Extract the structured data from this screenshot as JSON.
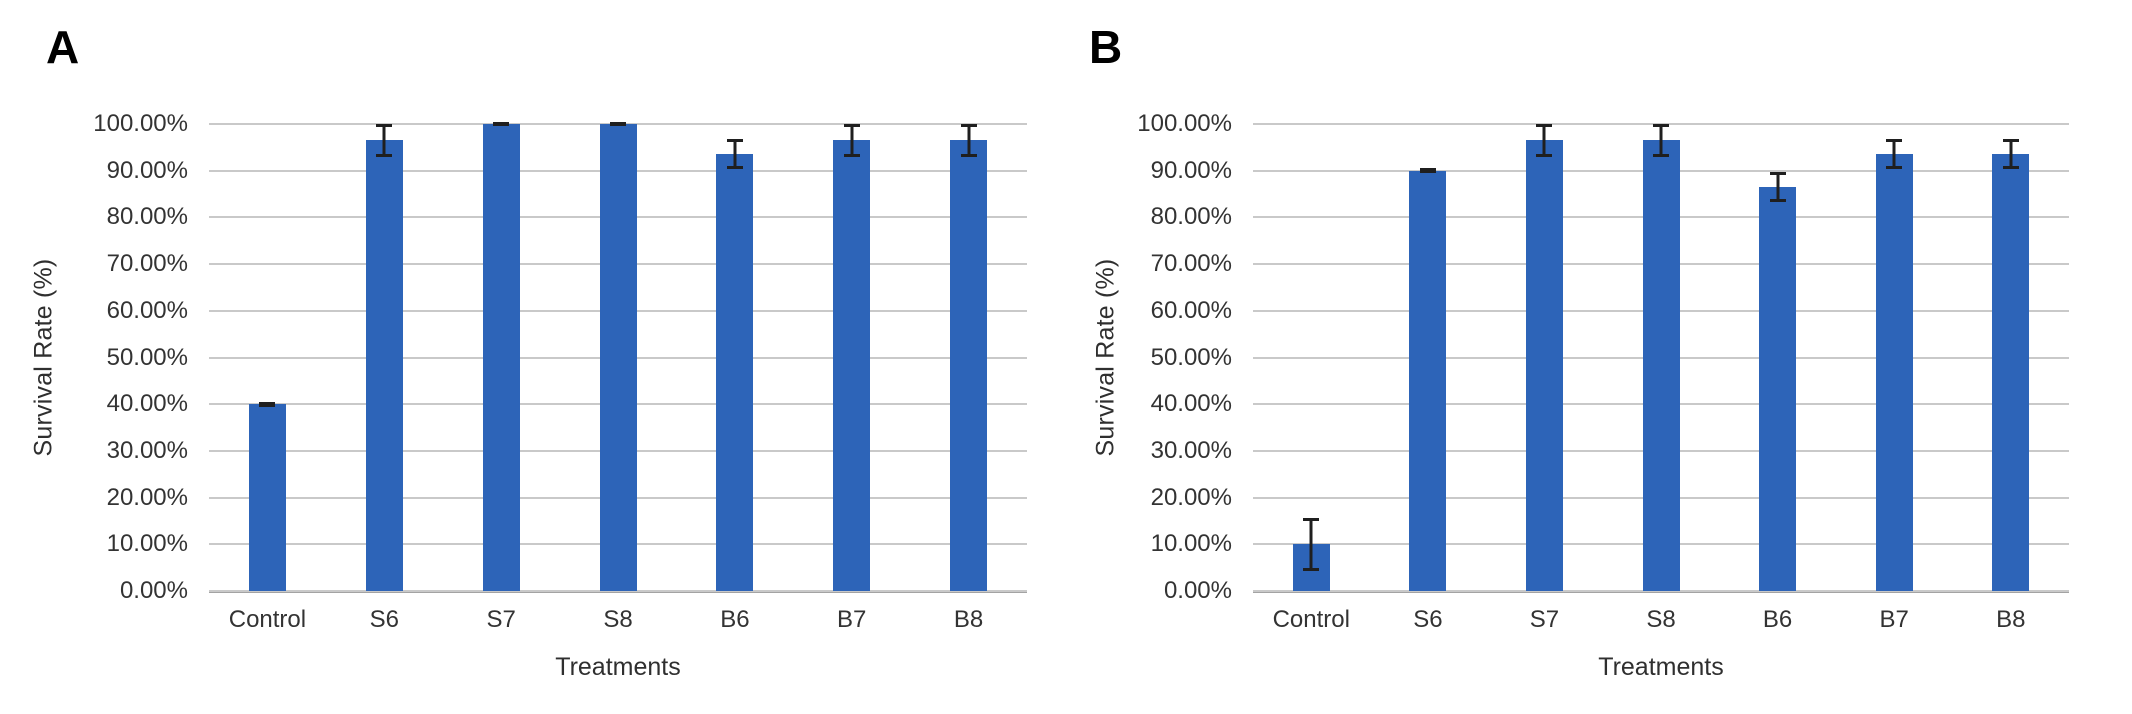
{
  "figure": {
    "panels": [
      {
        "label": "A",
        "y_axis_title": "Survival Rate (%)",
        "x_axis_title": "Treatments"
      },
      {
        "label": "B",
        "y_axis_title": "Survival Rate (%)",
        "x_axis_title": "Treatments"
      }
    ]
  },
  "styles": {
    "bar_color": "#2d64b8",
    "gridline_color": "#c9c9c9",
    "axis_line_color": "#a3a3a3",
    "error_bar_color": "#1f1f1f",
    "tick_text_color": "#333333",
    "title_text_color": "#2f2f2f"
  },
  "chart_data": [
    {
      "type": "bar",
      "panel": "A",
      "title": "",
      "xlabel": "Treatments",
      "ylabel": "Survival Rate (%)",
      "ylim": [
        0,
        100
      ],
      "grid": true,
      "legend_position": "none",
      "y_tick_labels": [
        "0.00%",
        "10.00%",
        "20.00%",
        "30.00%",
        "40.00%",
        "50.00%",
        "60.00%",
        "70.00%",
        "80.00%",
        "90.00%",
        "100.00%"
      ],
      "categories": [
        "Control",
        "S6",
        "S7",
        "S8",
        "B6",
        "B7",
        "B8"
      ],
      "values": [
        40,
        96.5,
        100,
        100,
        93.5,
        96.5,
        96.5
      ],
      "error_bars": [
        0.5,
        3.5,
        0.4,
        0.4,
        3.2,
        3.5,
        3.5
      ]
    },
    {
      "type": "bar",
      "panel": "B",
      "title": "",
      "xlabel": "Treatments",
      "ylabel": "Survival Rate (%)",
      "ylim": [
        0,
        100
      ],
      "grid": true,
      "legend_position": "none",
      "y_tick_labels": [
        "0.00%",
        "10.00%",
        "20.00%",
        "30.00%",
        "40.00%",
        "50.00%",
        "60.00%",
        "70.00%",
        "80.00%",
        "90.00%",
        "100.00%"
      ],
      "categories": [
        "Control",
        "S6",
        "S7",
        "S8",
        "B6",
        "B7",
        "B8"
      ],
      "values": [
        10,
        90,
        96.5,
        96.5,
        86.5,
        93.5,
        93.5
      ],
      "error_bars": [
        5.7,
        0.5,
        3.5,
        3.5,
        3.3,
        3.2,
        3.2
      ]
    }
  ]
}
